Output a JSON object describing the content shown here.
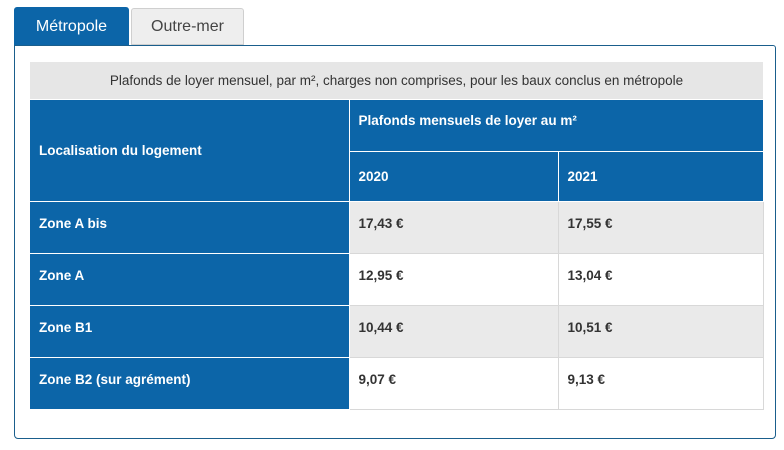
{
  "tabs": [
    {
      "label": "Métropole",
      "active": true
    },
    {
      "label": "Outre-mer",
      "active": false
    }
  ],
  "table": {
    "caption": "Plafonds de loyer mensuel, par m², charges non comprises, pour les baux conclus en métropole",
    "header_location": "Localisation du logement",
    "header_group": "Plafonds mensuels de loyer au m²",
    "years": [
      "2020",
      "2021"
    ],
    "rows": [
      {
        "zone": "Zone A bis",
        "v2020": "17,43 €",
        "v2021": "17,55 €"
      },
      {
        "zone": "Zone A",
        "v2020": "12,95 €",
        "v2021": "13,04 €"
      },
      {
        "zone": "Zone B1",
        "v2020": "10,44 €",
        "v2021": "10,51 €"
      },
      {
        "zone": "Zone B2 (sur agrément)",
        "v2020": "9,07 €",
        "v2021": "9,13 €"
      }
    ]
  },
  "colors": {
    "accent": "#0c65a8",
    "caption_bg": "#e6e6e6",
    "row_alt": "#eaeaea"
  }
}
